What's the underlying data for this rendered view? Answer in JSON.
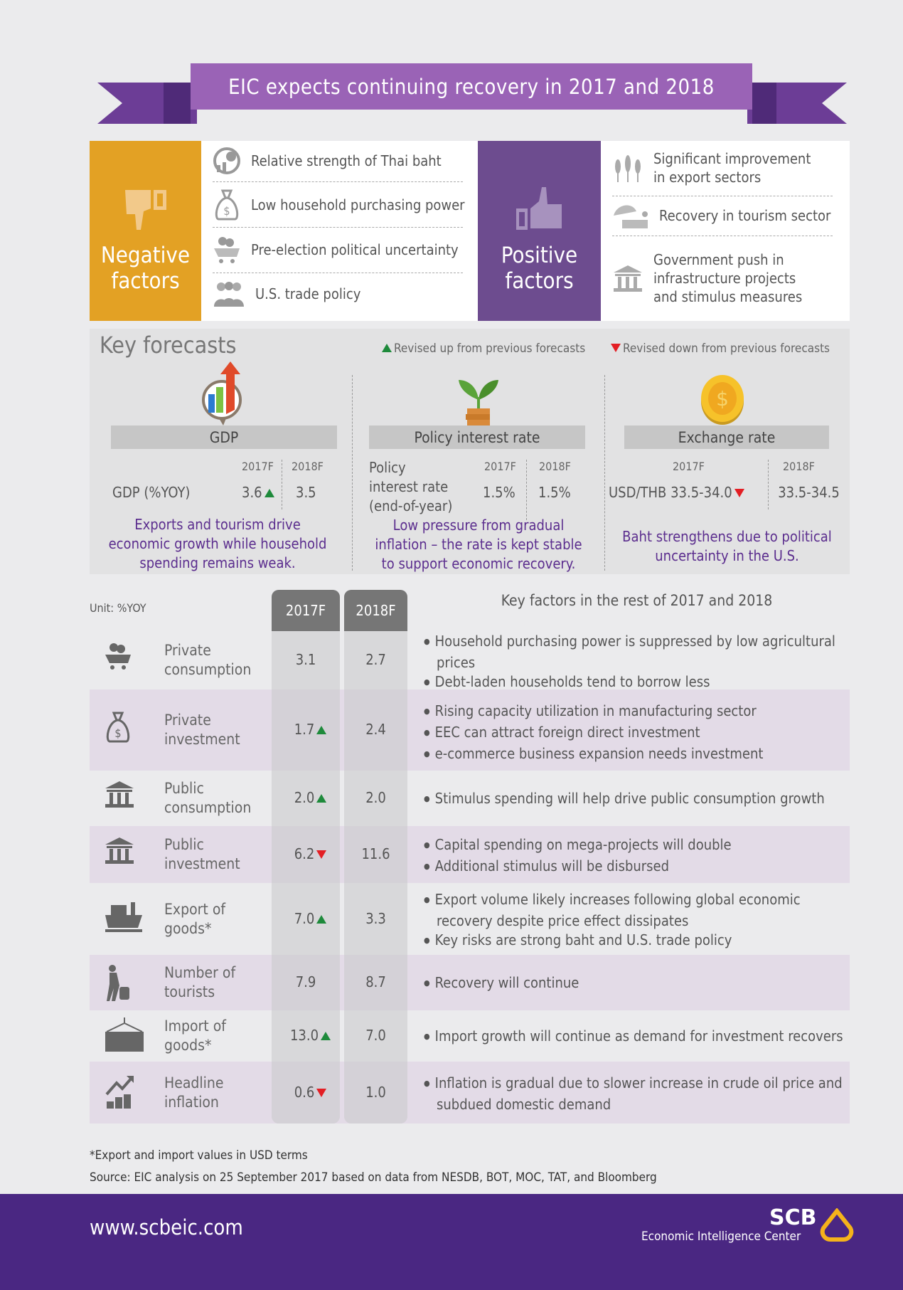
{
  "banner": {
    "title": "EIC expects continuing recovery in 2017 and 2018"
  },
  "negative": {
    "title_line1": "Negative",
    "title_line2": "factors",
    "items": [
      {
        "icon": "globe-baht-icon",
        "text": "Relative strength of Thai baht"
      },
      {
        "icon": "money-bag-icon",
        "text": "Low household purchasing power"
      },
      {
        "icon": "cart-coins-icon",
        "text": "Pre-election political uncertainty"
      },
      {
        "icon": "people-icon",
        "text": "U.S. trade policy"
      }
    ]
  },
  "positive": {
    "title_line1": "Positive",
    "title_line2": "factors",
    "items": [
      {
        "icon": "wheat-icon",
        "line1": "Significant improvement",
        "line2": "in export sectors",
        "line3": ""
      },
      {
        "icon": "beach-umbrella-icon",
        "line1": "Recovery in tourism sector",
        "line2": "",
        "line3": ""
      },
      {
        "icon": "government-building-icon",
        "line1": "Government push in",
        "line2": "infrastructure projects",
        "line3": "and stimulus measures"
      }
    ]
  },
  "key_forecasts": {
    "title": "Key forecasts",
    "legend_up": "Revised up from previous forecasts",
    "legend_down": "Revised down from previous forecasts",
    "gdp": {
      "header": "GDP",
      "y1": "2017F",
      "y2": "2018F",
      "label": "GDP (%YOY)",
      "v2017": "3.6",
      "v2017_trend": "up",
      "v2018": "3.5",
      "note": [
        "Exports and tourism drive",
        "economic growth while household",
        "spending remains weak."
      ]
    },
    "policy": {
      "header": "Policy interest rate",
      "y1": "2017F",
      "y2": "2018F",
      "label": [
        "Policy",
        "interest rate",
        "(end-of-year)"
      ],
      "v2017": "1.5%",
      "v2018": "1.5%",
      "note": [
        "Low pressure from gradual",
        "inflation – the rate is kept stable",
        "to support economic recovery."
      ]
    },
    "fx": {
      "header": "Exchange rate",
      "y1": "2017F",
      "y2": "2018F",
      "label": "USD/THB",
      "v2017": "33.5-34.0",
      "v2017_trend": "down",
      "v2018": "33.5-34.5",
      "note": [
        "Baht strengthens due to political",
        "uncertainty in the U.S."
      ]
    }
  },
  "table": {
    "unit": "Unit: %YOY",
    "col1": "2017F",
    "col2": "2018F",
    "factors_title": "Key factors in the rest of 2017 and 2018",
    "rows": [
      {
        "icon": "shopping-cart-icon",
        "label": [
          "Private",
          "consumption"
        ],
        "v2017": "3.1",
        "trend": "",
        "v2018": "2.7",
        "bullets": [
          "Household purchasing power is suppressed by low agricultural prices",
          "Debt-laden households tend to borrow less"
        ]
      },
      {
        "icon": "money-bag-icon",
        "label": [
          "Private",
          "investment"
        ],
        "v2017": "1.7",
        "trend": "up",
        "v2018": "2.4",
        "bullets": [
          "Rising capacity utilization in manufacturing sector",
          "EEC can attract foreign direct investment",
          "e-commerce business expansion needs investment"
        ]
      },
      {
        "icon": "government-building-icon",
        "label": [
          "Public",
          "consumption"
        ],
        "v2017": "2.0",
        "trend": "up",
        "v2018": "2.0",
        "bullets": [
          "Stimulus spending will help drive public consumption growth"
        ]
      },
      {
        "icon": "building-coins-icon",
        "label": [
          "Public",
          "investment"
        ],
        "v2017": "6.2",
        "trend": "down",
        "v2018": "11.6",
        "bullets": [
          "Capital spending on mega-projects will double",
          "Additional stimulus will be disbursed"
        ]
      },
      {
        "icon": "cargo-ship-icon",
        "label": [
          "Export of",
          "goods*"
        ],
        "v2017": "7.0",
        "trend": "up",
        "v2018": "3.3",
        "bullets": [
          "Export volume likely increases following global economic recovery despite price effect dissipates",
          "Key risks are strong baht and U.S. trade policy"
        ]
      },
      {
        "icon": "traveler-icon",
        "label": [
          "Number of",
          "tourists"
        ],
        "v2017": "7.9",
        "trend": "",
        "v2018": "8.7",
        "bullets": [
          "Recovery will continue"
        ]
      },
      {
        "icon": "container-crane-icon",
        "label": [
          "Import of",
          "goods*"
        ],
        "v2017": "13.0",
        "trend": "up",
        "v2018": "7.0",
        "bullets": [
          "Import growth will continue as demand for investment recovers"
        ]
      },
      {
        "icon": "rising-chart-coins-icon",
        "label": [
          "Headline",
          "inflation"
        ],
        "v2017": "0.6",
        "trend": "down",
        "v2018": "1.0",
        "bullets": [
          "Inflation is gradual due to slower increase in crude oil price and subdued domestic demand"
        ]
      }
    ]
  },
  "footnotes": {
    "note": "*Export and import values in USD terms",
    "source": "Source: EIC analysis on 25 September 2017 based on data from NESDB, BOT, MOC, TAT, and Bloomberg"
  },
  "footer": {
    "url": "www.scbeic.com",
    "brand": "SCB",
    "center": "Economic Intelligence Center"
  },
  "colors": {
    "negative": "#e3a124",
    "positive": "#6d4c8f",
    "banner": "#9a63b6",
    "footer": "#4a2782",
    "note_text": "#5b2d8e",
    "up": "#1e8a3b",
    "down": "#e31e24"
  }
}
